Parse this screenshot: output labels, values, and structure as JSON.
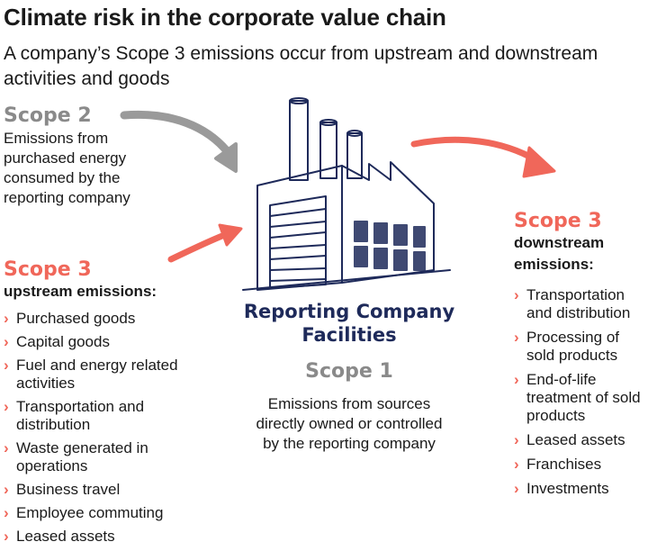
{
  "header": {
    "title": "Climate risk in the corporate value chain",
    "subtitle": "A company’s Scope 3 emissions occur from upstream and downstream activities and goods"
  },
  "scope2": {
    "title": "Scope 2",
    "description": "Emissions from purchased energy consumed by the reporting company"
  },
  "scope3_upstream": {
    "title": "Scope 3",
    "subtitle": "upstream emissions:",
    "items": [
      "Purchased goods",
      "Capital goods",
      "Fuel and energy related activities",
      "Transportation and distribution",
      "Waste generated in operations",
      "Business travel",
      "Employee commuting",
      "Leased assets"
    ]
  },
  "facility": {
    "label": "Reporting Company Facilities",
    "scope1_title": "Scope 1",
    "scope1_description": "Emissions from sources directly owned or controlled by the reporting company"
  },
  "scope3_downstream": {
    "title": "Scope 3",
    "subtitle": "downstream emissions:",
    "items": [
      "Transportation and distribution",
      "Processing of sold products",
      "End-of-life treatment of sold products",
      "Leased assets",
      "Franchises",
      "Investments"
    ]
  },
  "colors": {
    "accent_red": "#f0675a",
    "scope_gray": "#8a8a8a",
    "facility_navy": "#1e2a5a"
  },
  "icons": {
    "bullet": "chevron-right-icon",
    "factory": "factory-icon",
    "arrow": "arrow-icon"
  }
}
